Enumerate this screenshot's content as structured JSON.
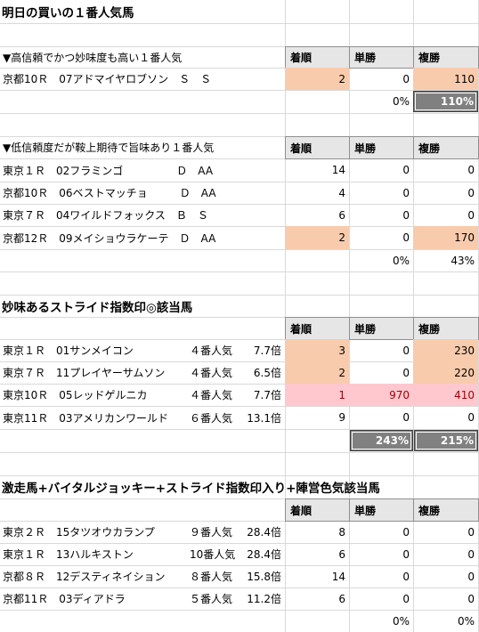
{
  "s1": {
    "title": "明日の買いの１番人気馬",
    "sub1": {
      "label": "▼高信頼でかつ妙味度も高い１番人気",
      "headers": [
        "着順",
        "単勝",
        "複勝"
      ],
      "rows": [
        {
          "text": "京都10Ｒ　07アドマイヤロブソン　Ｓ　Ｓ",
          "rank": "2",
          "win": "0",
          "place": "110"
        }
      ],
      "sum_win": "0%",
      "sum_place": "110%"
    },
    "sub2": {
      "label": "▼低信頼度だが鞍上期待で旨味あり１番人気",
      "headers": [
        "着順",
        "単勝",
        "複勝"
      ],
      "rows": [
        {
          "text": "東京１Ｒ　02フラミンゴ　　　　　Ｄ　AA",
          "rank": "14",
          "win": "0",
          "place": "0"
        },
        {
          "text": "京都10Ｒ　06ベストマッチョ　　　Ｄ　AA",
          "rank": "4",
          "win": "0",
          "place": "0"
        },
        {
          "text": "東京７Ｒ　04ワイルドフォックス　Ｂ　Ｓ",
          "rank": "6",
          "win": "0",
          "place": "0"
        },
        {
          "text": "京都12Ｒ　09メイショウラケーテ　Ｄ　AA",
          "rank": "2",
          "win": "0",
          "place": "170"
        }
      ],
      "sum_win": "0%",
      "sum_place": "43%"
    }
  },
  "s2": {
    "title": "妙味あるストライド指数印◎該当馬",
    "headers": [
      "着順",
      "単勝",
      "複勝"
    ],
    "rows": [
      {
        "race": "東京１Ｒ　01サンメイコン",
        "pop": "４番人気",
        "odds": "7.7倍",
        "rank": "3",
        "win": "0",
        "place": "230"
      },
      {
        "race": "東京７Ｒ　11プレイヤーサムソン",
        "pop": "４番人気",
        "odds": "6.5倍",
        "rank": "2",
        "win": "0",
        "place": "220"
      },
      {
        "race": "東京10Ｒ　05レッドゲルニカ",
        "pop": "４番人気",
        "odds": "7.7倍",
        "rank": "1",
        "win": "970",
        "place": "410"
      },
      {
        "race": "東京11Ｒ　03アメリカンワールド",
        "pop": "６番人気",
        "odds": "13.1倍",
        "rank": "9",
        "win": "0",
        "place": "0"
      }
    ],
    "sum_win": "243%",
    "sum_place": "215%"
  },
  "s3": {
    "title": "激走馬+バイタルジョッキー+ストライド指数印入り+陣営色気該当馬",
    "headers": [
      "着順",
      "単勝",
      "複勝"
    ],
    "rows": [
      {
        "race": "東京２Ｒ　15タツオウカランプ",
        "pop": "９番人気",
        "odds": "28.4倍",
        "rank": "8",
        "win": "0",
        "place": "0"
      },
      {
        "race": "東京１Ｒ　13ハルキストン",
        "pop": "10番人気",
        "odds": "28.4倍",
        "rank": "6",
        "win": "0",
        "place": "0"
      },
      {
        "race": "京都８Ｒ　12デスティネイション",
        "pop": "８番人気",
        "odds": "15.8倍",
        "rank": "14",
        "win": "0",
        "place": "0"
      },
      {
        "race": "京都11Ｒ　03ディアドラ",
        "pop": "５番人気",
        "odds": "11.2倍",
        "rank": "6",
        "win": "0",
        "place": "0"
      }
    ],
    "sum_win": "0%",
    "sum_place": "0%"
  },
  "colors": {
    "orange": "#f8cbad",
    "pink": "#ffc7ce",
    "pink_text": "#9c0006",
    "gray": "#808080",
    "header": "#e7e6e6"
  }
}
